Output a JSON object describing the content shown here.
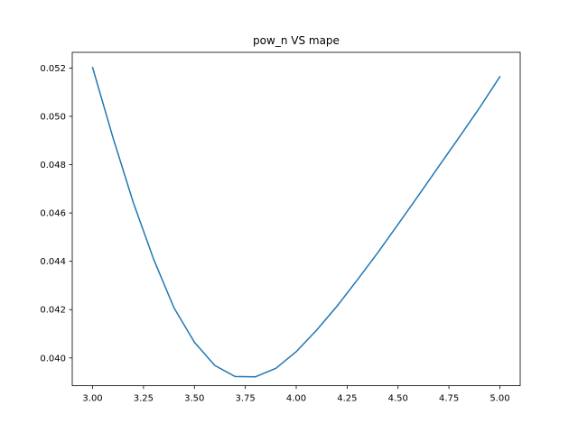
{
  "chart_data": {
    "type": "line",
    "title": "pow_n VS mape",
    "xlabel": "",
    "ylabel": "",
    "xlim": [
      2.9,
      5.1
    ],
    "ylim": [
      0.03885,
      0.05265
    ],
    "grid": false,
    "legend": "none",
    "x_ticks": [
      3.0,
      3.25,
      3.5,
      3.75,
      4.0,
      4.25,
      4.5,
      4.75,
      5.0
    ],
    "x_tick_labels": [
      "3.00",
      "3.25",
      "3.50",
      "3.75",
      "4.00",
      "4.25",
      "4.50",
      "4.75",
      "5.00"
    ],
    "y_ticks": [
      0.04,
      0.042,
      0.044,
      0.046,
      0.048,
      0.05,
      0.052
    ],
    "y_tick_labels": [
      "0.040",
      "0.042",
      "0.044",
      "0.046",
      "0.048",
      "0.050",
      "0.052"
    ],
    "series": [
      {
        "color": "#1f77b4",
        "x": [
          3.0,
          3.1,
          3.2,
          3.3,
          3.4,
          3.5,
          3.6,
          3.7,
          3.8,
          3.9,
          4.0,
          4.1,
          4.2,
          4.3,
          4.4,
          4.5,
          4.6,
          4.7,
          4.8,
          4.9,
          5.0
        ],
        "values": [
          0.05202,
          0.04912,
          0.04643,
          0.04408,
          0.04207,
          0.04065,
          0.03969,
          0.03923,
          0.03922,
          0.03957,
          0.04026,
          0.04115,
          0.04214,
          0.04323,
          0.04435,
          0.04553,
          0.04672,
          0.04793,
          0.04913,
          0.05035,
          0.05164
        ]
      }
    ]
  }
}
